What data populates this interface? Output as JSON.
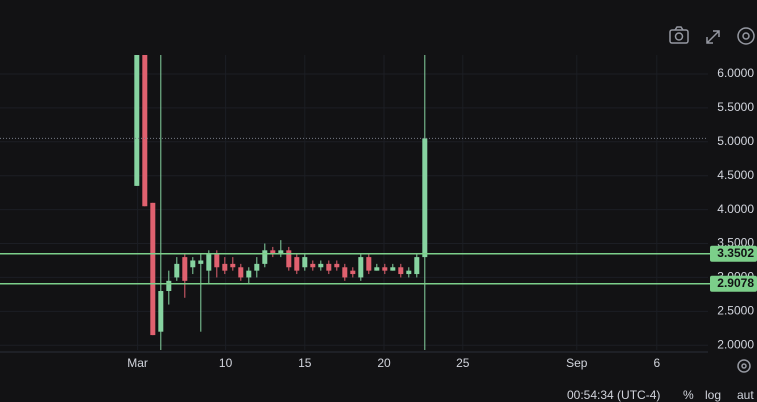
{
  "chart_data": {
    "type": "candlestick",
    "x": [
      0,
      1,
      2,
      3,
      4,
      5,
      6,
      7,
      8,
      9,
      10,
      11,
      12,
      13,
      14,
      15,
      16,
      17,
      18,
      19,
      20,
      21,
      22,
      23,
      24,
      25,
      26,
      27,
      28,
      29,
      30,
      31,
      32,
      33,
      34,
      35,
      36
    ],
    "open": [
      4.35,
      6.28,
      4.1,
      2.2,
      2.8,
      3.0,
      3.3,
      3.15,
      3.2,
      3.1,
      3.35,
      3.2,
      3.2,
      3.15,
      3.0,
      3.1,
      3.2,
      3.4,
      3.35,
      3.4,
      3.3,
      3.15,
      3.2,
      3.15,
      3.2,
      3.2,
      3.15,
      3.1,
      3.0,
      3.3,
      3.1,
      3.15,
      3.1,
      3.15,
      3.05,
      3.05,
      3.3
    ],
    "high": [
      6.28,
      6.28,
      4.1,
      6.28,
      3.1,
      3.3,
      3.35,
      3.3,
      3.35,
      3.4,
      3.4,
      3.3,
      3.3,
      3.2,
      3.15,
      3.3,
      3.5,
      3.45,
      3.55,
      3.45,
      3.35,
      3.35,
      3.25,
      3.25,
      3.25,
      3.25,
      3.2,
      3.15,
      3.35,
      3.35,
      3.2,
      3.2,
      3.2,
      3.2,
      3.15,
      3.35,
      6.28
    ],
    "low": [
      4.35,
      4.05,
      2.15,
      1.93,
      2.6,
      2.95,
      2.7,
      3.05,
      2.2,
      2.9,
      3.0,
      3.05,
      3.1,
      2.95,
      2.9,
      3.0,
      3.15,
      3.3,
      3.3,
      3.1,
      3.05,
      3.1,
      3.1,
      3.1,
      3.05,
      3.1,
      2.95,
      3.0,
      2.95,
      3.05,
      3.1,
      3.05,
      3.1,
      3.0,
      3.0,
      3.0,
      1.93
    ],
    "close": [
      6.28,
      4.05,
      2.15,
      2.8,
      2.95,
      3.2,
      2.95,
      3.25,
      3.25,
      3.35,
      3.15,
      3.1,
      3.15,
      3.0,
      3.1,
      3.2,
      3.4,
      3.35,
      3.4,
      3.15,
      3.1,
      3.3,
      3.15,
      3.2,
      3.1,
      3.15,
      3.0,
      3.05,
      3.3,
      3.1,
      3.15,
      3.1,
      3.15,
      3.05,
      3.1,
      3.3,
      5.05
    ],
    "up_color": "#86d3a0",
    "down_color": "#e0616f",
    "xlim": [
      -17.1,
      71.4
    ],
    "xticks": [
      {
        "value": 0.1,
        "label": "Mar"
      },
      {
        "value": 11.1,
        "label": "10"
      },
      {
        "value": 21,
        "label": "15"
      },
      {
        "value": 30.9,
        "label": "20"
      },
      {
        "value": 40.75,
        "label": "25"
      },
      {
        "value": 55,
        "label": "Sep"
      },
      {
        "value": 65,
        "label": "6"
      }
    ],
    "ylim": [
      1.93,
      6.28
    ],
    "yticks": [
      {
        "value": 2,
        "label": "2.0000"
      },
      {
        "value": 2.5,
        "label": "2.5000"
      },
      {
        "value": 3,
        "label": "3.0000"
      },
      {
        "value": 3.5,
        "label": "3.5000"
      },
      {
        "value": 4,
        "label": "4.0000"
      },
      {
        "value": 4.5,
        "label": "4.5000"
      },
      {
        "value": 5,
        "label": "5.0000"
      },
      {
        "value": 5.5,
        "label": "5.5000"
      },
      {
        "value": 6,
        "label": "6.0000"
      }
    ],
    "grid": true,
    "price_line": 5.05,
    "hlines": [
      3.3502,
      2.9078
    ],
    "hline_color": "#7ccf8a",
    "footer": {
      "time": "00:54:34 (UTC-4)",
      "percent": "%",
      "log": "log",
      "auto": "aut"
    }
  }
}
